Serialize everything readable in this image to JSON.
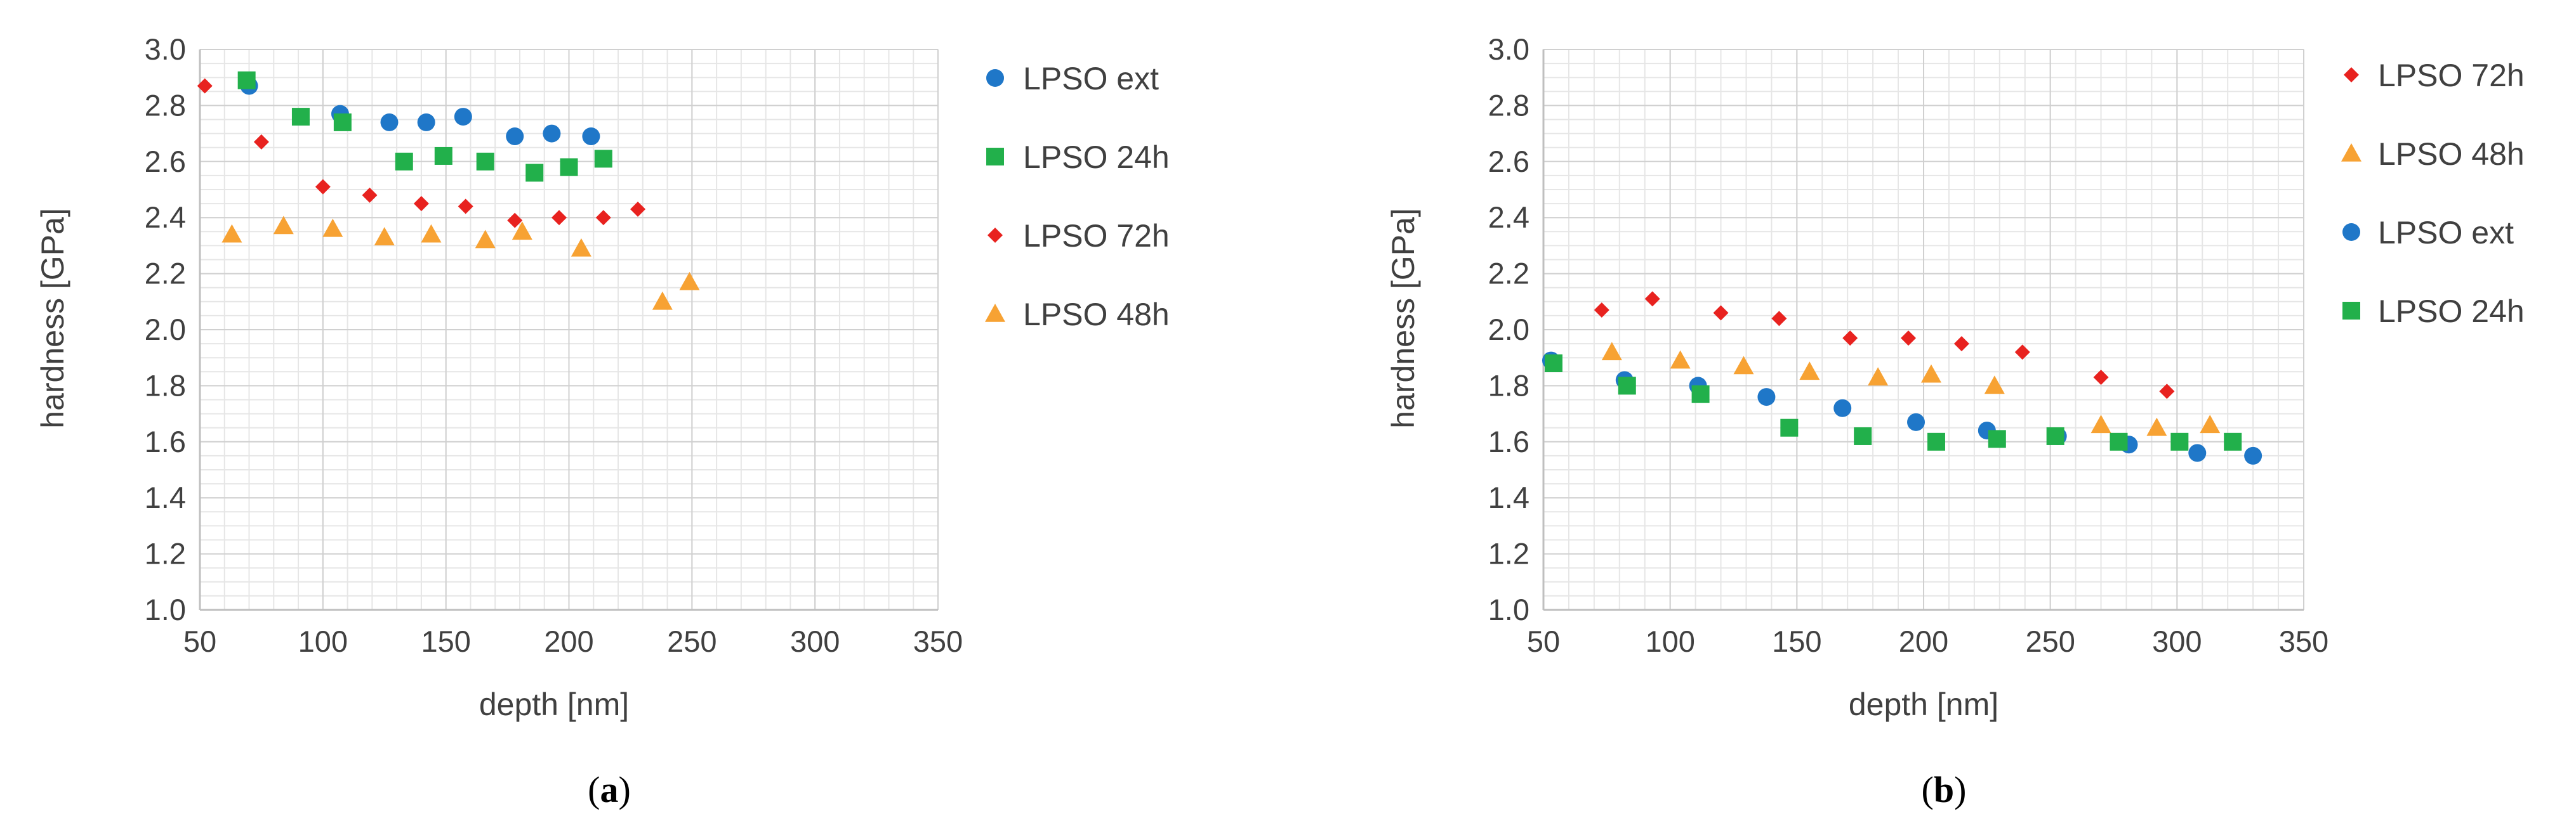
{
  "chart_data": [
    {
      "type": "scatter",
      "panel_caption": "a",
      "xlabel": "depth [nm]",
      "ylabel": "hardness [GPa]",
      "xlim": [
        50,
        350
      ],
      "ylim": [
        1.0,
        3.0
      ],
      "x_ticks": [
        "50",
        "100",
        "150",
        "200",
        "250",
        "300",
        "350"
      ],
      "y_ticks": [
        "1.0",
        "1.2",
        "1.4",
        "1.6",
        "1.8",
        "2.0",
        "2.2",
        "2.4",
        "2.6",
        "2.8",
        "3.0"
      ],
      "grid": true,
      "legend_position": "right",
      "series": [
        {
          "name": "LPSO ext",
          "marker": "circle",
          "color": "#1f77c8",
          "points": [
            [
              70,
              2.87
            ],
            [
              107,
              2.77
            ],
            [
              127,
              2.74
            ],
            [
              142,
              2.74
            ],
            [
              157,
              2.76
            ],
            [
              178,
              2.69
            ],
            [
              193,
              2.7
            ],
            [
              209,
              2.69
            ]
          ]
        },
        {
          "name": "LPSO 24h",
          "marker": "square",
          "color": "#22b04b",
          "points": [
            [
              69,
              2.89
            ],
            [
              91,
              2.76
            ],
            [
              108,
              2.74
            ],
            [
              133,
              2.6
            ],
            [
              149,
              2.62
            ],
            [
              166,
              2.6
            ],
            [
              186,
              2.56
            ],
            [
              200,
              2.58
            ],
            [
              214,
              2.61
            ]
          ]
        },
        {
          "name": "LPSO 72h",
          "marker": "diamond",
          "color": "#e8221f",
          "points": [
            [
              52,
              2.87
            ],
            [
              75,
              2.67
            ],
            [
              100,
              2.51
            ],
            [
              119,
              2.48
            ],
            [
              140,
              2.45
            ],
            [
              158,
              2.44
            ],
            [
              178,
              2.39
            ],
            [
              196,
              2.4
            ],
            [
              214,
              2.4
            ],
            [
              228,
              2.43
            ]
          ]
        },
        {
          "name": "LPSO 48h",
          "marker": "triangle",
          "color": "#f7a233",
          "points": [
            [
              63,
              2.34
            ],
            [
              84,
              2.37
            ],
            [
              104,
              2.36
            ],
            [
              125,
              2.33
            ],
            [
              144,
              2.34
            ],
            [
              166,
              2.32
            ],
            [
              181,
              2.35
            ],
            [
              205,
              2.29
            ],
            [
              238,
              2.1
            ],
            [
              249,
              2.17
            ]
          ]
        }
      ]
    },
    {
      "type": "scatter",
      "panel_caption": "b",
      "xlabel": "depth [nm]",
      "ylabel": "hardness [GPa]",
      "xlim": [
        50,
        350
      ],
      "ylim": [
        1.0,
        3.0
      ],
      "x_ticks": [
        "50",
        "100",
        "150",
        "200",
        "250",
        "300",
        "350"
      ],
      "y_ticks": [
        "1.0",
        "1.2",
        "1.4",
        "1.6",
        "1.8",
        "2.0",
        "2.2",
        "2.4",
        "2.6",
        "2.8",
        "3.0"
      ],
      "grid": true,
      "legend_position": "right",
      "series": [
        {
          "name": "LPSO 72h",
          "marker": "diamond",
          "color": "#e8221f",
          "points": [
            [
              73,
              2.07
            ],
            [
              93,
              2.11
            ],
            [
              120,
              2.06
            ],
            [
              143,
              2.04
            ],
            [
              171,
              1.97
            ],
            [
              194,
              1.97
            ],
            [
              215,
              1.95
            ],
            [
              239,
              1.92
            ],
            [
              270,
              1.83
            ],
            [
              296,
              1.78
            ]
          ]
        },
        {
          "name": "LPSO 48h",
          "marker": "triangle",
          "color": "#f7a233",
          "points": [
            [
              77,
              1.92
            ],
            [
              104,
              1.89
            ],
            [
              129,
              1.87
            ],
            [
              155,
              1.85
            ],
            [
              182,
              1.83
            ],
            [
              203,
              1.84
            ],
            [
              228,
              1.8
            ],
            [
              270,
              1.66
            ],
            [
              292,
              1.65
            ],
            [
              313,
              1.66
            ]
          ]
        },
        {
          "name": "LPSO ext",
          "marker": "circle",
          "color": "#1f77c8",
          "points": [
            [
              53,
              1.89
            ],
            [
              82,
              1.82
            ],
            [
              111,
              1.8
            ],
            [
              138,
              1.76
            ],
            [
              168,
              1.72
            ],
            [
              197,
              1.67
            ],
            [
              225,
              1.64
            ],
            [
              253,
              1.62
            ],
            [
              281,
              1.59
            ],
            [
              308,
              1.56
            ],
            [
              330,
              1.55
            ]
          ]
        },
        {
          "name": "LPSO 24h",
          "marker": "square",
          "color": "#22b04b",
          "points": [
            [
              54,
              1.88
            ],
            [
              83,
              1.8
            ],
            [
              112,
              1.77
            ],
            [
              147,
              1.65
            ],
            [
              176,
              1.62
            ],
            [
              205,
              1.6
            ],
            [
              229,
              1.61
            ],
            [
              252,
              1.62
            ],
            [
              277,
              1.6
            ],
            [
              301,
              1.6
            ],
            [
              322,
              1.6
            ]
          ]
        }
      ]
    }
  ]
}
